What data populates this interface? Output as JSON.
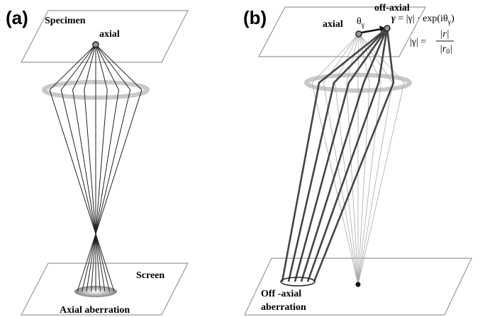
{
  "panel_a": {
    "label": "(a)",
    "specimen": "Specimen",
    "point": "axial",
    "screen": "Screen",
    "caption": "Axial aberration"
  },
  "panel_b": {
    "label": "(b)",
    "axial": "axial",
    "theta": {
      "base": "θ",
      "sub": "γ"
    },
    "off_axial": "off-axial",
    "equation": {
      "lhs": "γ",
      "rhs": " = |γ| · exp(iθ",
      "sub": "γ",
      "close": ")"
    },
    "magnitude": {
      "lhs": "|γ| =",
      "numerator": "|r|",
      "denominator": "|r",
      "denominator_sub": "0",
      "denominator_close": "|"
    },
    "caption": [
      "Off -axial",
      "aberration"
    ]
  }
}
